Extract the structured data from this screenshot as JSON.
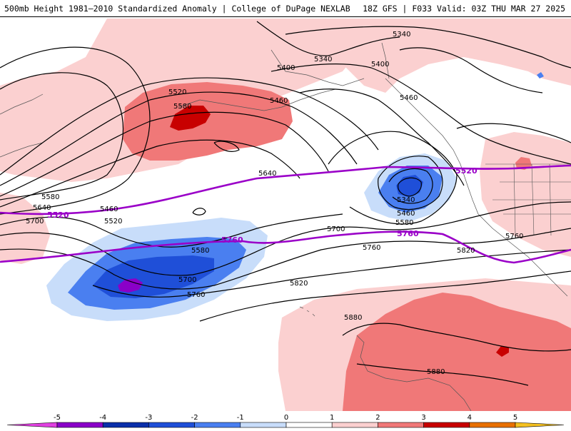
{
  "header": {
    "title_left": "500mb Height 1981–2010 Standardized Anomaly | College of DuPage NEXLAB",
    "title_right": "18Z GFS | F033 Valid: 03Z THU MAR 27 2025"
  },
  "contour_labels": [
    {
      "text": "5340"
    },
    {
      "text": "5340"
    },
    {
      "text": "5400"
    },
    {
      "text": "5400"
    },
    {
      "text": "5460"
    },
    {
      "text": "5460"
    },
    {
      "text": "5520"
    },
    {
      "text": "5580"
    },
    {
      "text": "5580"
    },
    {
      "text": "5640"
    },
    {
      "text": "5460"
    },
    {
      "text": "5520"
    },
    {
      "text": "5640"
    },
    {
      "text": "5700"
    },
    {
      "text": "5580"
    },
    {
      "text": "5700"
    },
    {
      "text": "5760"
    },
    {
      "text": "5700"
    },
    {
      "text": "5760"
    },
    {
      "text": "5820"
    },
    {
      "text": "5340"
    },
    {
      "text": "5460"
    },
    {
      "text": "5580"
    },
    {
      "text": "5760"
    },
    {
      "text": "5820"
    },
    {
      "text": "5880"
    },
    {
      "text": "5880"
    }
  ],
  "thick_labels": [
    {
      "text": "5520"
    },
    {
      "text": "5520"
    },
    {
      "text": "5760"
    },
    {
      "text": "5760"
    }
  ],
  "colorbar": {
    "ticks": [
      "-5",
      "-4",
      "-3",
      "-2",
      "-1",
      "0",
      "1",
      "2",
      "3",
      "4",
      "5"
    ],
    "colors": [
      "#e040e0",
      "#8a00c8",
      "#0a2faa",
      "#1f4fd8",
      "#4a7ff0",
      "#c8ddfa",
      "#ffffff",
      "#fbd0d0",
      "#f07878",
      "#c80000",
      "#e87000",
      "#f4c020"
    ]
  }
}
